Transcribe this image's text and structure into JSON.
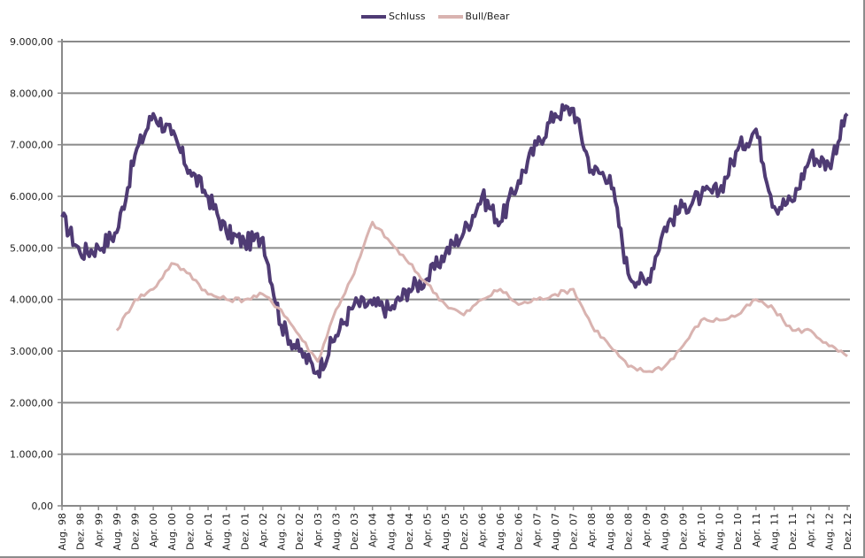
{
  "chart_data": {
    "type": "line",
    "title": "",
    "xlabel": "",
    "ylabel": "",
    "ylim": [
      0,
      9000
    ],
    "grid": true,
    "legend_position": "top",
    "y_ticks": [
      "0,00",
      "1.000,00",
      "2.000,00",
      "3.000,00",
      "4.000,00",
      "5.000,00",
      "6.000,00",
      "7.000,00",
      "8.000,00",
      "9.000,00"
    ],
    "categories": [
      "Aug. 98",
      "Dez. 98",
      "Apr. 99",
      "Aug. 99",
      "Dez. 99",
      "Apr. 00",
      "Aug. 00",
      "Dez. 00",
      "Apr. 01",
      "Aug. 01",
      "Dez. 01",
      "Apr. 02",
      "Aug. 02",
      "Dez. 02",
      "Apr. 03",
      "Aug. 03",
      "Dez. 03",
      "Apr. 04",
      "Aug. 04",
      "Dez. 04",
      "Apr. 05",
      "Aug. 05",
      "Dez. 05",
      "Apr. 06",
      "Aug. 06",
      "Dez. 06",
      "Apr. 07",
      "Aug. 07",
      "Dez. 07",
      "Apr. 08",
      "Aug. 08",
      "Dez. 08",
      "Apr. 09",
      "Aug. 09",
      "Dez. 09",
      "Apr. 10",
      "Aug. 10",
      "Dez. 10",
      "Apr. 11",
      "Aug. 11",
      "Dez. 11",
      "Apr. 12",
      "Aug. 12",
      "Dez. 12"
    ],
    "series": [
      {
        "name": "Schluss",
        "color": "#4f3b74",
        "values": [
          5600,
          4900,
          5000,
          5300,
          6800,
          7600,
          7200,
          6500,
          6000,
          5300,
          5100,
          5200,
          3500,
          3000,
          2600,
          3300,
          3900,
          3900,
          3800,
          4200,
          4400,
          4900,
          5300,
          6000,
          5500,
          6300,
          7000,
          7600,
          7700,
          6500,
          6400,
          4500,
          4300,
          5400,
          5800,
          6000,
          6100,
          6900,
          7300,
          5800,
          5900,
          6800,
          6600,
          7600
        ]
      },
      {
        "name": "Bull/Bear",
        "color": "#d9b3b0",
        "values": [
          null,
          null,
          null,
          3400,
          4000,
          4200,
          4700,
          4500,
          4100,
          4000,
          4000,
          4100,
          3800,
          3300,
          2800,
          3800,
          4500,
          5500,
          5100,
          4700,
          4300,
          3900,
          3700,
          4000,
          4200,
          3900,
          4000,
          4100,
          4200,
          3500,
          3100,
          2700,
          2600,
          2700,
          3100,
          3600,
          3600,
          3700,
          4000,
          3800,
          3400,
          3400,
          3100,
          2900
        ]
      }
    ]
  },
  "legend": {
    "items": [
      {
        "label": "Schluss",
        "color": "#4f3b74"
      },
      {
        "label": "Bull/Bear",
        "color": "#d9b3b0"
      }
    ]
  }
}
